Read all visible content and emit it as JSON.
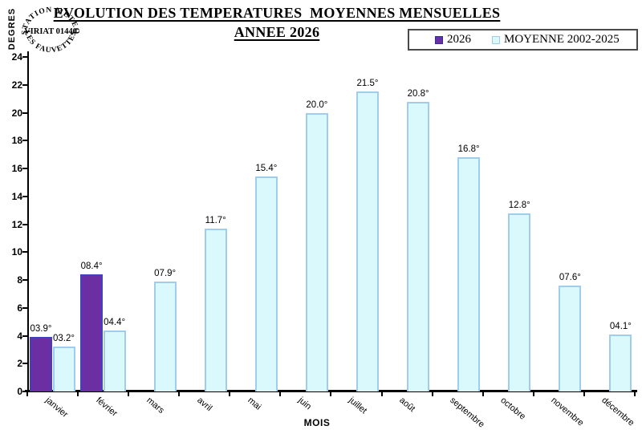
{
  "stamp": {
    "top": "STATION METEO",
    "middle": "VIRIAT 01440",
    "bottom": "LES FAUVETTES"
  },
  "chart_data": {
    "type": "bar",
    "title": "EVOLUTION DES TEMPERATURES  MOYENNES MENSUELLES",
    "subtitle": "ANNEE 2026",
    "xlabel": "MOIS",
    "ylabel": "DEGRES",
    "ylim": [
      0,
      24
    ],
    "ytick_step": 2,
    "grid": false,
    "legend_position": "top-right",
    "categories": [
      "janvier",
      "février",
      "mars",
      "avril",
      "mai",
      "juin",
      "juillet",
      "août",
      "septembre",
      "octobre",
      "novembre",
      "décembre"
    ],
    "series": [
      {
        "name": "2026",
        "color": "#6B2FA3",
        "border_color": "#4141BE",
        "values": [
          3.9,
          8.4,
          null,
          null,
          null,
          null,
          null,
          null,
          null,
          null,
          null,
          null
        ],
        "labels": [
          "03.9°",
          "08.4°",
          "",
          "",
          "",
          "",
          "",
          "",
          "",
          "",
          "",
          ""
        ]
      },
      {
        "name": "MOYENNE 2002-2025",
        "color": "#D9F9FD",
        "border_color": "#9FCDEB",
        "values": [
          3.2,
          4.4,
          7.9,
          11.7,
          15.4,
          20.0,
          21.5,
          20.8,
          16.8,
          12.8,
          7.6,
          4.1
        ],
        "labels": [
          "03.2°",
          "04.4°",
          "07.9°",
          "11.7°",
          "15.4°",
          "20.0°",
          "21.5°",
          "20.8°",
          "16.8°",
          "12.8°",
          "07.6°",
          "04.1°"
        ]
      }
    ],
    "axis_color": "#000000"
  }
}
